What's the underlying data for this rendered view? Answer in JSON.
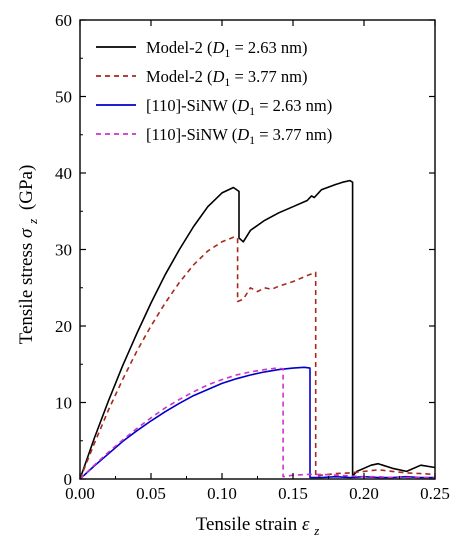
{
  "chart_data": {
    "type": "line",
    "xlabel": "Tensile strain",
    "xlabel_symbol": "ε",
    "xlabel_sub": "z",
    "ylabel": "Tensile stress",
    "ylabel_symbol": "σ",
    "ylabel_sub": "z",
    "ylabel_unit": "(GPa)",
    "xlim": [
      0,
      0.25
    ],
    "ylim": [
      0,
      60
    ],
    "xticks": [
      0.0,
      0.05,
      0.1,
      0.15,
      0.2,
      0.25
    ],
    "xtick_labels": [
      "0.00",
      "0.05",
      "0.10",
      "0.15",
      "0.20",
      "0.25"
    ],
    "yticks": [
      0,
      10,
      20,
      30,
      40,
      50,
      60
    ],
    "ytick_labels": [
      "0",
      "10",
      "20",
      "30",
      "40",
      "50",
      "60"
    ],
    "legend_position": "top-right",
    "grid": false,
    "series": [
      {
        "name": "Model-2",
        "name_param": "D",
        "name_param_sub": "1",
        "name_value": " = 2.63 nm)",
        "color": "#000000",
        "dash": "solid",
        "x": [
          0,
          0.01,
          0.02,
          0.03,
          0.04,
          0.05,
          0.06,
          0.07,
          0.08,
          0.09,
          0.1,
          0.108,
          0.112,
          0.112,
          0.115,
          0.12,
          0.13,
          0.14,
          0.15,
          0.16,
          0.163,
          0.165,
          0.17,
          0.18,
          0.185,
          0.19,
          0.192,
          0.192,
          0.195,
          0.2,
          0.205,
          0.21,
          0.22,
          0.23,
          0.24,
          0.25
        ],
        "y": [
          0,
          5.3,
          10.2,
          14.8,
          19.0,
          23.0,
          26.7,
          30.0,
          33.0,
          35.6,
          37.4,
          38.1,
          37.6,
          31.5,
          31.0,
          32.5,
          33.8,
          34.8,
          35.6,
          36.4,
          37.0,
          36.8,
          37.8,
          38.5,
          38.8,
          39.0,
          38.8,
          0.4,
          1.0,
          1.4,
          1.8,
          2.0,
          1.4,
          1.0,
          1.8,
          1.5
        ]
      },
      {
        "name": "Model-2",
        "name_param": "D",
        "name_param_sub": "1",
        "name_value": " = 3.77 nm)",
        "color": "#a52a1a",
        "dash": "dashed",
        "x": [
          0,
          0.01,
          0.02,
          0.03,
          0.04,
          0.05,
          0.06,
          0.07,
          0.08,
          0.09,
          0.1,
          0.108,
          0.111,
          0.111,
          0.115,
          0.12,
          0.125,
          0.13,
          0.135,
          0.14,
          0.15,
          0.16,
          0.166,
          0.166,
          0.17,
          0.18,
          0.19,
          0.2,
          0.21,
          0.22,
          0.23,
          0.24,
          0.25
        ],
        "y": [
          0,
          4.6,
          9.0,
          13.0,
          16.7,
          20.0,
          23.0,
          25.7,
          28.0,
          29.8,
          31.0,
          31.6,
          31.5,
          23.2,
          23.5,
          25.0,
          24.5,
          25.0,
          24.8,
          25.2,
          25.8,
          26.6,
          27.0,
          0.3,
          0.5,
          0.7,
          0.8,
          1.0,
          1.2,
          1.0,
          0.8,
          0.7,
          0.6
        ]
      },
      {
        "name": "[110]-SiNW",
        "name_param": "D",
        "name_param_sub": "1",
        "name_value": " = 2.63 nm)",
        "color": "#0000cc",
        "dash": "solid",
        "x": [
          0,
          0.01,
          0.02,
          0.03,
          0.04,
          0.05,
          0.06,
          0.07,
          0.08,
          0.09,
          0.1,
          0.11,
          0.12,
          0.13,
          0.14,
          0.15,
          0.158,
          0.162,
          0.162,
          0.17,
          0.18,
          0.19,
          0.2,
          0.21,
          0.22,
          0.23,
          0.24,
          0.25
        ],
        "y": [
          0,
          1.7,
          3.3,
          4.9,
          6.3,
          7.6,
          8.8,
          9.9,
          10.9,
          11.7,
          12.5,
          13.1,
          13.6,
          14.0,
          14.3,
          14.5,
          14.6,
          14.5,
          0.2,
          0.2,
          0.3,
          0.2,
          0.3,
          0.2,
          0.2,
          0.3,
          0.2,
          0.2
        ]
      },
      {
        "name": "[110]-SiNW",
        "name_param": "D",
        "name_param_sub": "1",
        "name_value": " = 3.77 nm)",
        "color": "#cc33cc",
        "dash": "dashed",
        "x": [
          0,
          0.01,
          0.02,
          0.03,
          0.04,
          0.05,
          0.06,
          0.07,
          0.08,
          0.09,
          0.1,
          0.11,
          0.12,
          0.13,
          0.138,
          0.143,
          0.143,
          0.15,
          0.16,
          0.17,
          0.18,
          0.19,
          0.2,
          0.21,
          0.22,
          0.23,
          0.24,
          0.25
        ],
        "y": [
          0,
          1.8,
          3.5,
          5.1,
          6.6,
          8.0,
          9.3,
          10.4,
          11.4,
          12.3,
          13.0,
          13.6,
          14.0,
          14.3,
          14.5,
          14.4,
          0.3,
          0.5,
          0.6,
          0.6,
          0.5,
          0.4,
          0.3,
          0.3,
          0.2,
          0.2,
          0.2,
          0.2
        ]
      }
    ]
  }
}
